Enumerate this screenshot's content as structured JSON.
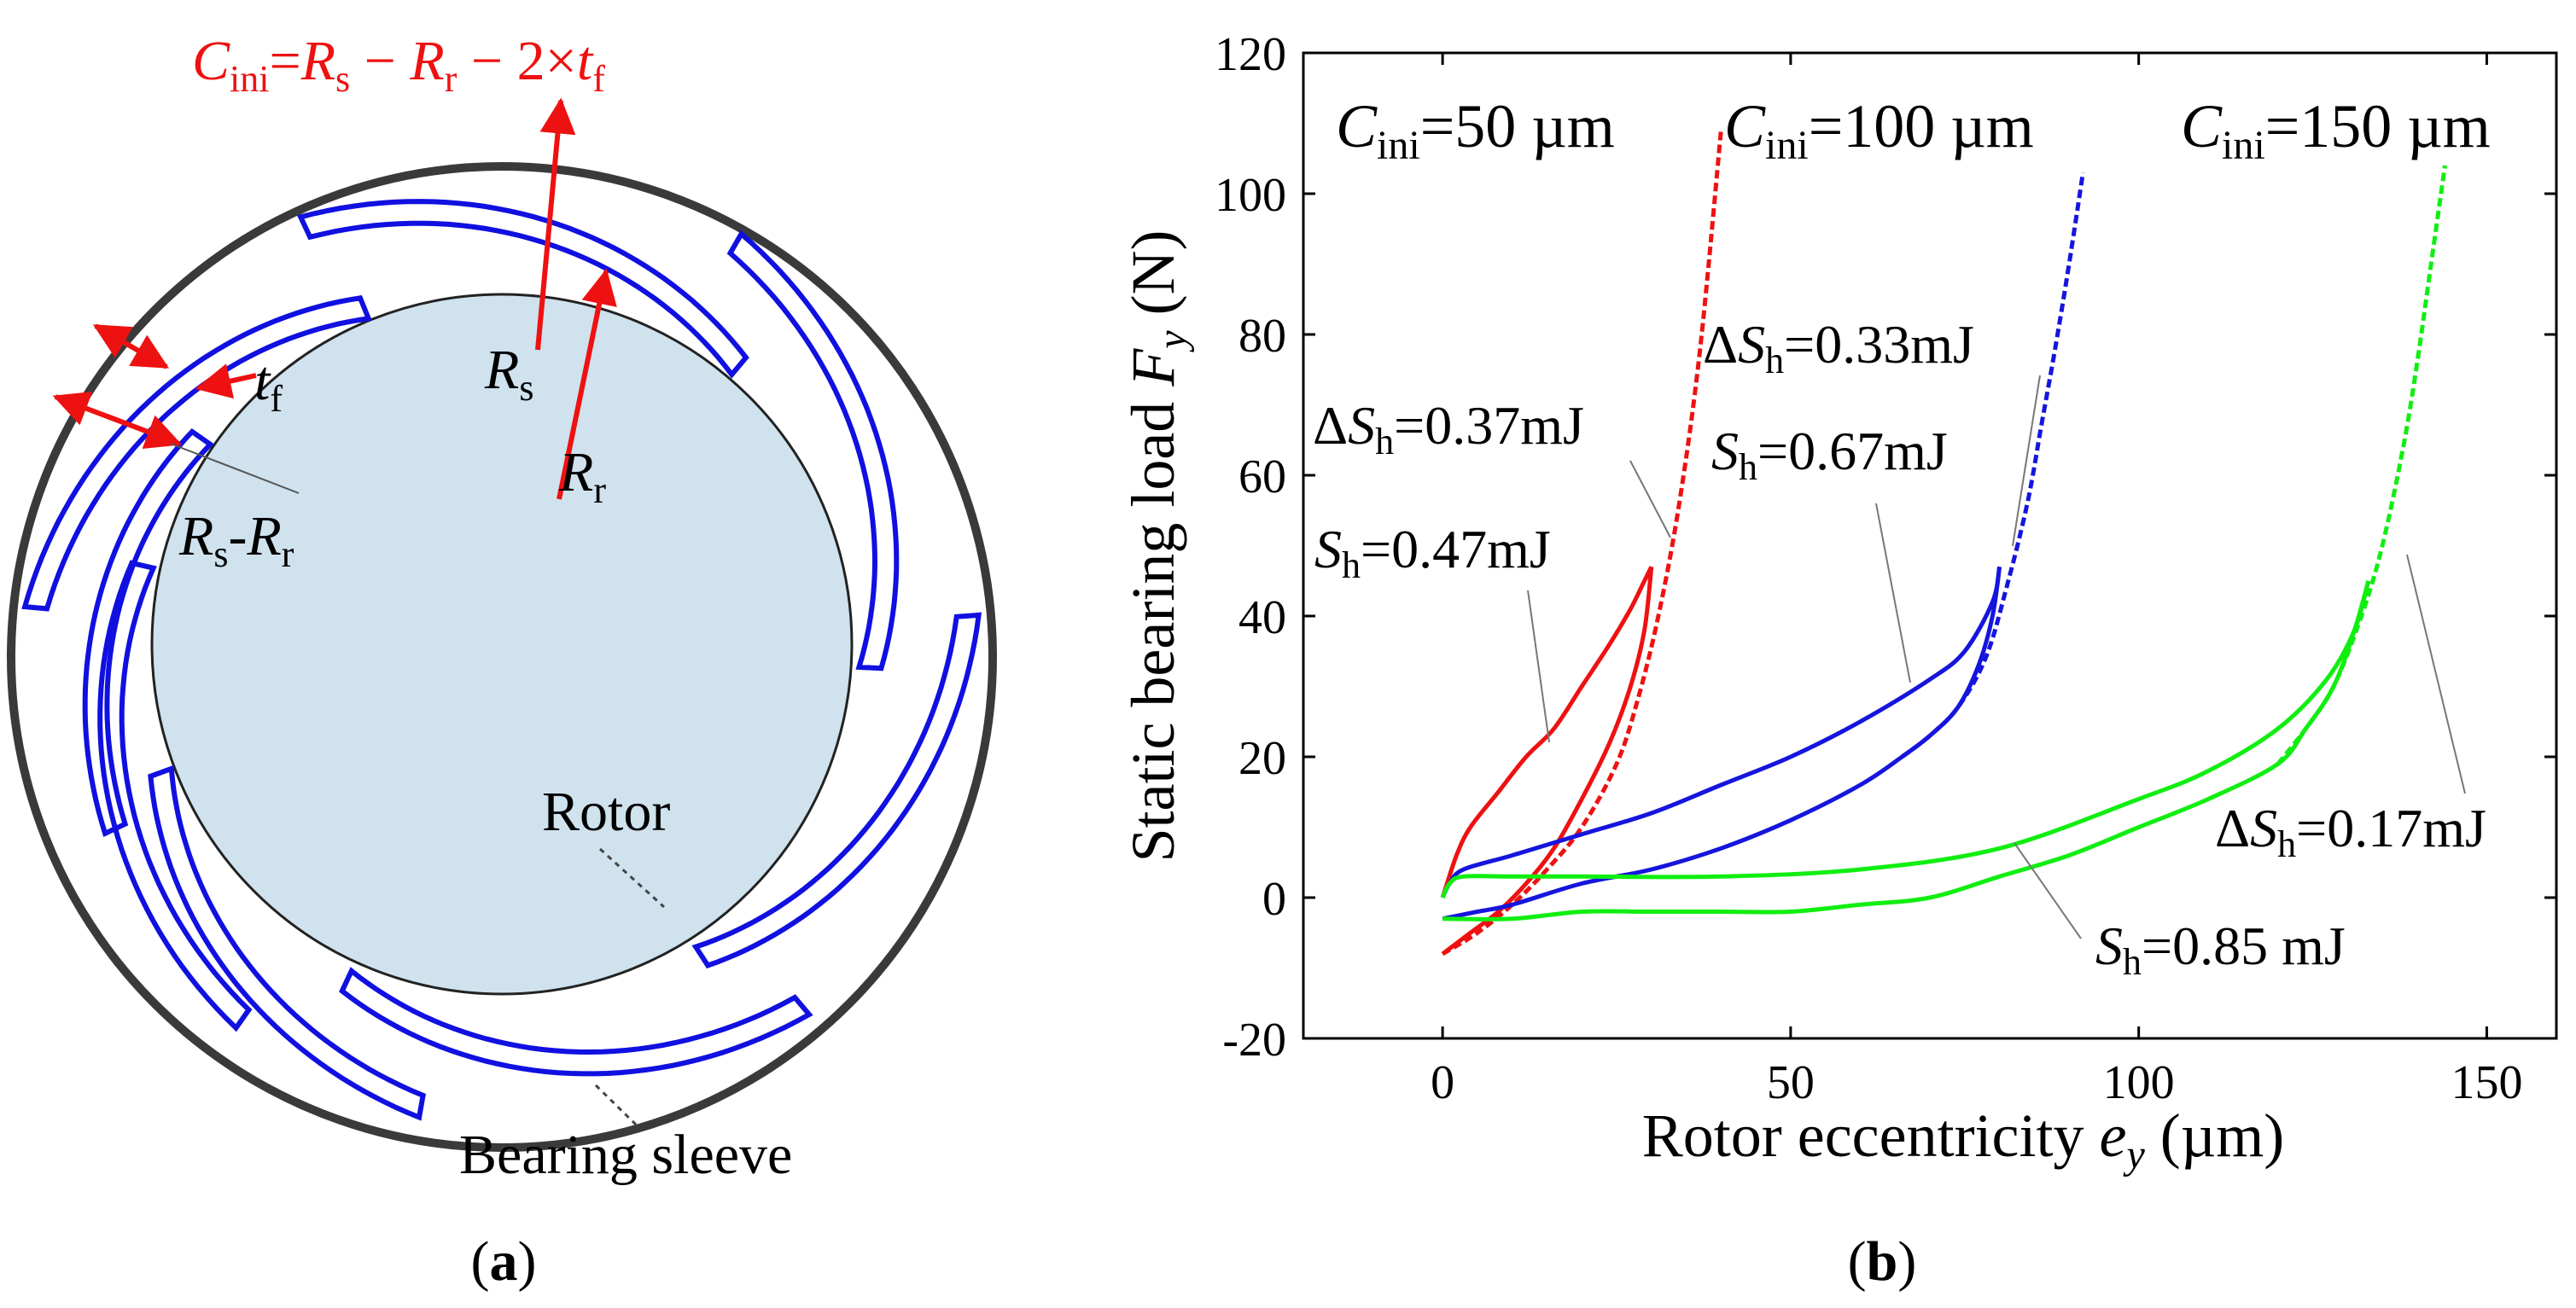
{
  "panel_a": {
    "formula": {
      "C": "C",
      "ini": "ini",
      "eq": "=",
      "R1": "R",
      "s": "s",
      "minus1": " − ",
      "R2": "R",
      "r": "r",
      "minus2": " − 2×",
      "t": "t",
      "f": "f"
    },
    "Rs": {
      "main": "R",
      "sub": "s"
    },
    "Rr": {
      "main": "R",
      "sub": "r"
    },
    "tf": {
      "main": "t",
      "sub": "f"
    },
    "RsRr": {
      "R1": "R",
      "s": "s",
      "dash": "-",
      "R2": "R",
      "r": "r"
    },
    "rotor_label": "Rotor",
    "sleeve_label": "Bearing sleeve",
    "panel_label": {
      "open": "(",
      "letter": "a",
      "close": ")"
    },
    "colors": {
      "foil": "#1010e0",
      "sleeve": "#3a3a3a",
      "rotor_fill": "#cfe2ee",
      "arrow": "#ee1111"
    }
  },
  "panel_b": {
    "panel_label": {
      "open": "(",
      "letter": "b",
      "close": ")"
    },
    "ylabel": {
      "text": "Static bearing load ",
      "var": "F",
      "sub": "y",
      "unit": " (N)"
    },
    "xlabel": {
      "text": "Rotor eccentricity ",
      "var": "e",
      "sub": "y",
      "unit": " (µm)"
    },
    "cini_labels": [
      {
        "C": "C",
        "sub": "ini",
        "value": "=50 µm"
      },
      {
        "C": "C",
        "sub": "ini",
        "value": "=100 µm"
      },
      {
        "C": "C",
        "sub": "ini",
        "value": "=150 µm"
      }
    ],
    "annotations": [
      {
        "delta": "Δ",
        "S": "S",
        "sub": "h",
        "value": "=0.33mJ"
      },
      {
        "delta": "Δ",
        "S": "S",
        "sub": "h",
        "value": "=0.37mJ"
      },
      {
        "delta": "",
        "S": "S",
        "sub": "h",
        "value": "=0.67mJ"
      },
      {
        "delta": "",
        "S": "S",
        "sub": "h",
        "value": "=0.47mJ"
      },
      {
        "delta": "Δ",
        "S": "S",
        "sub": "h",
        "value": "=0.17mJ"
      },
      {
        "delta": "",
        "S": "S",
        "sub": "h",
        "value": "=0.85 mJ"
      }
    ],
    "colors": {
      "c50": "#ee1111",
      "c100": "#1515dd",
      "c150": "#11ee11",
      "axis": "#000000"
    }
  },
  "chart_data": {
    "type": "line",
    "title": "",
    "xlabel": "Rotor eccentricity e_y (µm)",
    "ylabel": "Static bearing load F_y (N)",
    "xlim": [
      -20,
      160
    ],
    "ylim": [
      -20,
      120
    ],
    "xticks": [
      0,
      50,
      100,
      150
    ],
    "yticks": [
      -20,
      0,
      20,
      40,
      60,
      80,
      100,
      120
    ],
    "series": [
      {
        "name": "C_ini=50 µm hysteresis loading",
        "style": "solid",
        "color": "#ee1111",
        "x": [
          0,
          2,
          4,
          8,
          12,
          16,
          20,
          24,
          27,
          29,
          30
        ],
        "y": [
          0,
          6,
          10,
          15,
          20,
          24,
          30,
          36,
          41,
          45,
          47
        ]
      },
      {
        "name": "C_ini=50 µm hysteresis unloading",
        "style": "solid",
        "color": "#ee1111",
        "x": [
          30,
          29,
          27,
          24,
          20,
          16,
          12,
          8,
          4,
          0
        ],
        "y": [
          47,
          38,
          30,
          22,
          14,
          7,
          2,
          -2,
          -5,
          -8
        ]
      },
      {
        "name": "C_ini=50 µm static",
        "style": "dashed",
        "color": "#ee1111",
        "x": [
          0,
          5,
          10,
          15,
          20,
          25,
          28,
          31,
          34,
          37,
          40
        ],
        "y": [
          -8,
          -5,
          -1,
          4,
          10,
          19,
          28,
          40,
          56,
          78,
          109
        ]
      },
      {
        "name": "C_ini=100 µm hysteresis loading",
        "style": "solid",
        "color": "#1515dd",
        "x": [
          0,
          1,
          3,
          10,
          20,
          30,
          40,
          50,
          60,
          70,
          75,
          79,
          80
        ],
        "y": [
          0,
          2,
          4,
          6,
          9,
          12,
          16,
          20,
          25,
          31,
          35,
          42,
          47
        ]
      },
      {
        "name": "C_ini=100 µm hysteresis unloading",
        "style": "solid",
        "color": "#1515dd",
        "x": [
          80,
          79,
          77,
          74,
          70,
          66,
          60,
          50,
          40,
          30,
          20,
          10,
          5,
          0
        ],
        "y": [
          47,
          40,
          33,
          27,
          23,
          20,
          16,
          11,
          7,
          4,
          2,
          -1,
          -2,
          -3
        ]
      },
      {
        "name": "C_ini=100 µm static",
        "style": "dashed",
        "color": "#1515dd",
        "x": [
          66,
          70,
          74,
          78,
          81,
          84,
          86,
          88,
          90,
          92
        ],
        "y": [
          20,
          23,
          27,
          34,
          44,
          56,
          67,
          78,
          90,
          103
        ]
      },
      {
        "name": "C_ini=150 µm hysteresis loading",
        "style": "solid",
        "color": "#11ee11",
        "x": [
          0,
          1,
          3,
          10,
          20,
          40,
          60,
          80,
          100,
          110,
          120,
          127,
          131,
          133
        ],
        "y": [
          0,
          2,
          3,
          3,
          3,
          3,
          4,
          7,
          14,
          18,
          24,
          31,
          38,
          45
        ]
      },
      {
        "name": "C_ini=150 µm hysteresis unloading",
        "style": "solid",
        "color": "#11ee11",
        "x": [
          133,
          131,
          128,
          124,
          120,
          110,
          100,
          90,
          80,
          70,
          60,
          50,
          40,
          30,
          20,
          10,
          0
        ],
        "y": [
          45,
          38,
          30,
          24,
          19,
          14,
          10,
          6,
          3,
          0,
          -1,
          -2,
          -2,
          -2,
          -2,
          -3,
          -3
        ]
      },
      {
        "name": "C_ini=150 µm static",
        "style": "dashed",
        "color": "#11ee11",
        "x": [
          120,
          124,
          128,
          132,
          135,
          138,
          140,
          142,
          144
        ],
        "y": [
          19,
          24,
          30,
          40,
          50,
          64,
          76,
          90,
          104
        ]
      }
    ]
  }
}
